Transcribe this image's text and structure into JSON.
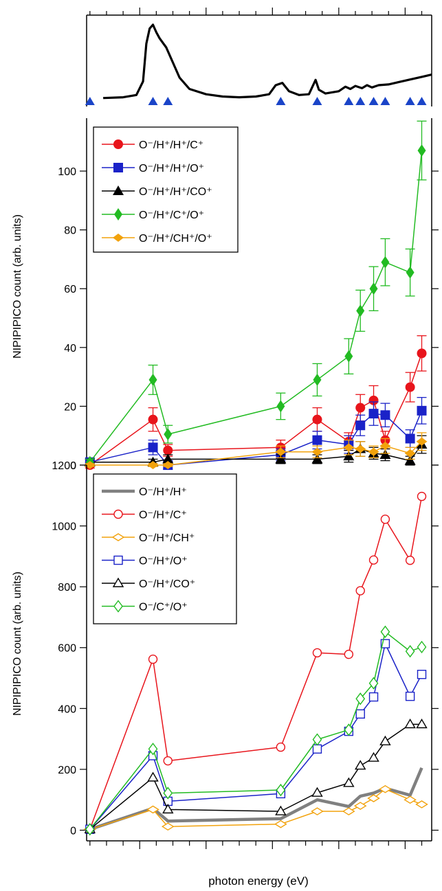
{
  "x_axis": {
    "label": "photon energy (eV)",
    "range": [
      286.4,
      296.8
    ],
    "major_ticks": [
      288,
      290,
      292,
      294,
      296
    ],
    "minor_step": 0.5
  },
  "chart_data": [
    {
      "type": "line",
      "title": "",
      "xlabel": "",
      "ylabel": "",
      "xlim": [
        286.4,
        296.8
      ],
      "ylim": [
        0,
        1
      ],
      "grid": false,
      "y_tick_labels": "none",
      "series": [
        {
          "color": "#000000",
          "style": "line",
          "points": [
            [
              286.9,
              0.03
            ],
            [
              287.5,
              0.04
            ],
            [
              287.9,
              0.07
            ],
            [
              288.1,
              0.25
            ],
            [
              288.2,
              0.75
            ],
            [
              288.3,
              0.95
            ],
            [
              288.4,
              1.0
            ],
            [
              288.5,
              0.9
            ],
            [
              288.6,
              0.82
            ],
            [
              288.8,
              0.7
            ],
            [
              289.0,
              0.5
            ],
            [
              289.2,
              0.3
            ],
            [
              289.5,
              0.15
            ],
            [
              290.0,
              0.08
            ],
            [
              290.5,
              0.05
            ],
            [
              291.0,
              0.04
            ],
            [
              291.5,
              0.05
            ],
            [
              291.9,
              0.08
            ],
            [
              292.1,
              0.2
            ],
            [
              292.3,
              0.23
            ],
            [
              292.5,
              0.12
            ],
            [
              292.8,
              0.07
            ],
            [
              293.1,
              0.08
            ],
            [
              293.3,
              0.27
            ],
            [
              293.4,
              0.14
            ],
            [
              293.6,
              0.09
            ],
            [
              294.0,
              0.12
            ],
            [
              294.2,
              0.18
            ],
            [
              294.35,
              0.15
            ],
            [
              294.5,
              0.19
            ],
            [
              294.7,
              0.16
            ],
            [
              294.85,
              0.2
            ],
            [
              295.0,
              0.17
            ],
            [
              295.2,
              0.2
            ],
            [
              295.5,
              0.21
            ],
            [
              295.8,
              0.24
            ],
            [
              296.2,
              0.28
            ],
            [
              296.5,
              0.31
            ],
            [
              296.8,
              0.34
            ]
          ]
        }
      ],
      "markers": {
        "color": "#1a44c8",
        "shape": "triangle-up",
        "x": [
          286.5,
          288.4,
          288.85,
          292.25,
          293.35,
          294.3,
          294.65,
          295.05,
          295.4,
          296.15,
          296.5
        ]
      }
    },
    {
      "type": "line",
      "title": "",
      "xlabel": "",
      "ylabel": "NIPIPIPICO count (arb. units)",
      "xlim": [
        286.4,
        296.8
      ],
      "ylim": [
        0,
        118
      ],
      "y_ticks": [
        0,
        20,
        40,
        60,
        80,
        100
      ],
      "grid": false,
      "legend": "top-left",
      "series": [
        {
          "name": "O⁻/H⁺/H⁺/C⁺",
          "color": "#e8141b",
          "marker": "circle",
          "x": [
            286.5,
            288.4,
            288.85,
            292.25,
            293.35,
            294.3,
            294.65,
            295.05,
            295.4,
            296.15,
            296.5
          ],
          "values": [
            0,
            15.5,
            5,
            6,
            15.5,
            8,
            19.5,
            22,
            8.5,
            26.5,
            38
          ],
          "errors": [
            1,
            4,
            2,
            2.5,
            4,
            3,
            4.5,
            5,
            3,
            5,
            6
          ]
        },
        {
          "name": "O⁻/H⁺/H⁺/O⁺",
          "color": "#1a22c8",
          "marker": "square",
          "x": [
            286.5,
            288.4,
            288.85,
            292.25,
            293.35,
            294.3,
            294.65,
            295.05,
            295.4,
            296.15,
            296.5
          ],
          "values": [
            1,
            6,
            0,
            3.5,
            8.5,
            7,
            13.5,
            17.5,
            17,
            9,
            18.5
          ],
          "errors": [
            1,
            2.5,
            1.5,
            2,
            3,
            3,
            3.5,
            4,
            4,
            3,
            4.5
          ]
        },
        {
          "name": "O⁻/H⁺/H⁺/CO⁺",
          "color": "#000000",
          "marker": "triangle-up",
          "x": [
            286.5,
            288.4,
            288.85,
            292.25,
            293.35,
            294.3,
            294.65,
            295.05,
            295.4,
            296.15,
            296.5
          ],
          "values": [
            1,
            1,
            2,
            2,
            2,
            3,
            5.5,
            4,
            3.5,
            1.5,
            7
          ],
          "errors": [
            1,
            1,
            1.5,
            1.5,
            1.5,
            2,
            2.5,
            2,
            2,
            1.5,
            3
          ]
        },
        {
          "name": "O⁻/H⁺/C⁺/O⁺",
          "color": "#22bb22",
          "marker": "diamond",
          "x": [
            286.5,
            288.4,
            288.85,
            292.25,
            293.35,
            294.3,
            294.65,
            295.05,
            295.4,
            296.15,
            296.5
          ],
          "values": [
            1,
            29,
            10.5,
            20,
            29,
            37,
            52.5,
            60,
            69,
            65.5,
            107
          ],
          "errors": [
            1,
            5,
            3,
            4.5,
            5.5,
            6,
            7,
            7.5,
            8,
            8,
            10
          ]
        },
        {
          "name": "O⁻/H⁺/CH⁺/O⁺",
          "color": "#f2a20c",
          "marker": "diamond-small",
          "x": [
            286.5,
            288.4,
            288.85,
            292.25,
            293.35,
            294.3,
            294.65,
            295.05,
            295.4,
            296.15,
            296.5
          ],
          "values": [
            0,
            0,
            0,
            4.5,
            4.5,
            6,
            5.5,
            4.5,
            6.5,
            4,
            8
          ],
          "errors": [
            0.5,
            0.5,
            0.5,
            2,
            2,
            2.5,
            2.5,
            2,
            2.5,
            2,
            3
          ]
        }
      ]
    },
    {
      "type": "line",
      "title": "",
      "xlabel": "photon energy (eV)",
      "ylabel": "NIPIPIPICO count (arb. units)",
      "xlim": [
        286.4,
        296.8
      ],
      "ylim": [
        -35,
        1200
      ],
      "y_ticks": [
        0,
        200,
        400,
        600,
        800,
        1000,
        1200
      ],
      "grid": false,
      "legend": "top-left",
      "series": [
        {
          "name": "O⁻/H⁺/H⁺",
          "color": "#808080",
          "marker": "none",
          "thick": true,
          "x": [
            286.5,
            288.4,
            288.85,
            292.25,
            293.35,
            294.3,
            294.65,
            295.05,
            295.4,
            296.15,
            296.5
          ],
          "values": [
            3,
            72,
            30,
            38,
            100,
            78,
            112,
            122,
            138,
            115,
            205
          ]
        },
        {
          "name": "O⁻/H⁺/C⁺",
          "color": "#e8141b",
          "marker": "circle-open",
          "x": [
            286.5,
            288.4,
            288.85,
            292.25,
            293.35,
            294.3,
            294.65,
            295.05,
            295.4,
            296.15,
            296.5
          ],
          "values": [
            3,
            562,
            228,
            273,
            583,
            578,
            787,
            888,
            1022,
            887,
            1097
          ]
        },
        {
          "name": "O⁻/H⁺/CH⁺",
          "color": "#f2a20c",
          "marker": "diamond-open-small",
          "x": [
            286.5,
            288.4,
            288.85,
            292.25,
            293.35,
            294.3,
            294.65,
            295.05,
            295.4,
            296.15,
            296.5
          ],
          "values": [
            3,
            68,
            12,
            20,
            62,
            62,
            80,
            105,
            135,
            100,
            85
          ]
        },
        {
          "name": "O⁻/H⁺/O⁺",
          "color": "#1a22c8",
          "marker": "square-open",
          "x": [
            286.5,
            288.4,
            288.85,
            292.25,
            293.35,
            294.3,
            294.65,
            295.05,
            295.4,
            296.15,
            296.5
          ],
          "values": [
            3,
            245,
            95,
            120,
            267,
            325,
            382,
            438,
            613,
            440,
            512
          ]
        },
        {
          "name": "O⁻/H⁺/CO⁺",
          "color": "#000000",
          "marker": "triangle-open",
          "x": [
            286.5,
            288.4,
            288.85,
            292.25,
            293.35,
            294.3,
            294.65,
            295.05,
            295.4,
            296.15,
            296.5
          ],
          "values": [
            3,
            173,
            68,
            62,
            123,
            155,
            212,
            238,
            292,
            348,
            348
          ]
        },
        {
          "name": "O⁻/C⁺/O⁺",
          "color": "#22bb22",
          "marker": "diamond-open",
          "x": [
            286.5,
            288.4,
            288.85,
            292.25,
            293.35,
            294.3,
            294.65,
            295.05,
            295.4,
            296.15,
            296.5
          ],
          "values": [
            3,
            267,
            122,
            132,
            298,
            330,
            432,
            483,
            652,
            588,
            602
          ]
        }
      ]
    }
  ]
}
